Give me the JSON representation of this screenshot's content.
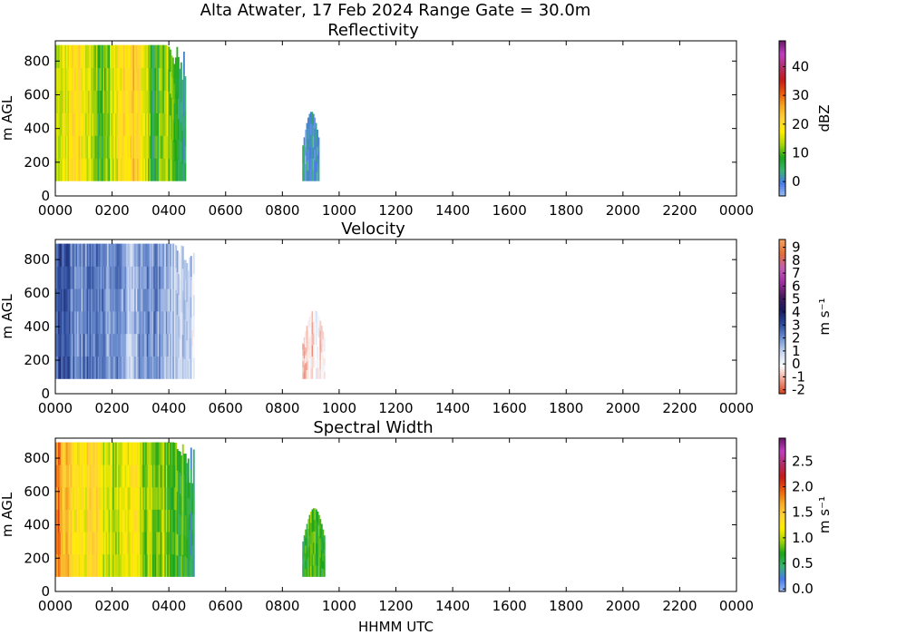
{
  "figure_title": "Alta Atwater, 17 Feb 2024 Range Gate = 30.0m",
  "chart_data": [
    {
      "type": "heatmap",
      "title": "Reflectivity",
      "xlabel": "",
      "ylabel": "m AGL",
      "colorbar_label": "dBZ",
      "x_ticks": [
        "0000",
        "0200",
        "0400",
        "0600",
        "0800",
        "1000",
        "1200",
        "1400",
        "1600",
        "1800",
        "2000",
        "2200",
        "0000"
      ],
      "y_ticks": [
        "0",
        "200",
        "400",
        "600",
        "800"
      ],
      "ylim": [
        0,
        920
      ],
      "xlim_hours": [
        0,
        24
      ],
      "colorbar_ticks": [
        "0",
        "10",
        "20",
        "30",
        "40"
      ],
      "colorbar_tick_values": [
        0,
        10,
        20,
        30,
        40
      ],
      "colorbar_range": [
        -5,
        49
      ],
      "colormap": [
        "#9bbdf5",
        "#4a7ae8",
        "#3cb371",
        "#1aa51a",
        "#a8d40a",
        "#ffee00",
        "#ffd23a",
        "#f5a623",
        "#e8590c",
        "#c41a1a",
        "#b0306b",
        "#c040c0",
        "#6a1a6a"
      ],
      "regions": [
        {
          "t_start": 0.0,
          "t_end": 4.6,
          "h_bottom": 90,
          "h_top": 895,
          "levels": [
            12,
            18,
            20,
            17,
            8,
            14,
            20,
            23,
            19,
            6,
            15,
            8,
            3
          ]
        },
        {
          "t_start": 8.7,
          "t_end": 9.3,
          "h_bottom": 90,
          "h_top": 500,
          "levels": [
            1,
            0,
            2,
            1
          ]
        }
      ]
    },
    {
      "type": "heatmap",
      "title": "Velocity",
      "xlabel": "",
      "ylabel": "m AGL",
      "colorbar_label": "m s⁻¹",
      "x_ticks": [
        "0000",
        "0200",
        "0400",
        "0600",
        "0800",
        "1000",
        "1200",
        "1400",
        "1600",
        "1800",
        "2000",
        "2200",
        "0000"
      ],
      "y_ticks": [
        "0",
        "200",
        "400",
        "600",
        "800"
      ],
      "ylim": [
        0,
        920
      ],
      "xlim_hours": [
        0,
        24
      ],
      "colorbar_ticks": [
        "-2",
        "-1",
        "0",
        "1",
        "2",
        "3",
        "4",
        "5",
        "6",
        "7",
        "8",
        "9"
      ],
      "colorbar_tick_values": [
        -2,
        -1,
        0,
        1,
        2,
        3,
        4,
        5,
        6,
        7,
        8,
        9
      ],
      "colorbar_range": [
        -2.3,
        9.6
      ],
      "colormap": [
        "#d6401a",
        "#f0a090",
        "#ffffff",
        "#c8d6f0",
        "#6e8fd0",
        "#2c4a9a",
        "#1a1a5c",
        "#4a1a5c",
        "#a030a0",
        "#c060b0",
        "#e0703a",
        "#f5a060"
      ],
      "regions": [
        {
          "t_start": 0.0,
          "t_end": 4.9,
          "h_bottom": 90,
          "h_top": 895,
          "levels": [
            3.2,
            2.6,
            2.0,
            2.8,
            1.6,
            2.2,
            1.4,
            2.4,
            1.8,
            1.2,
            0.9,
            0.6
          ]
        },
        {
          "t_start": 8.7,
          "t_end": 9.5,
          "h_bottom": 90,
          "h_top": 500,
          "levels": [
            -0.6,
            -0.3,
            -0.8
          ]
        }
      ]
    },
    {
      "type": "heatmap",
      "title": "Spectral Width",
      "xlabel": "HHMM UTC",
      "ylabel": "m AGL",
      "colorbar_label": "m s⁻¹",
      "x_ticks": [
        "0000",
        "0200",
        "0400",
        "0600",
        "0800",
        "1000",
        "1200",
        "1400",
        "1600",
        "1800",
        "2000",
        "2200",
        "0000"
      ],
      "y_ticks": [
        "0",
        "200",
        "400",
        "600",
        "800"
      ],
      "ylim": [
        0,
        920
      ],
      "xlim_hours": [
        0,
        24
      ],
      "colorbar_ticks": [
        "0.0",
        "0.5",
        "1.0",
        "1.5",
        "2.0",
        "2.5"
      ],
      "colorbar_tick_values": [
        0.0,
        0.5,
        1.0,
        1.5,
        2.0,
        2.5
      ],
      "colorbar_range": [
        -0.05,
        2.95
      ],
      "colormap": [
        "#9bbdf5",
        "#4a7ae8",
        "#3cb371",
        "#1aa51a",
        "#a8d40a",
        "#ffee00",
        "#ffd23a",
        "#f5a623",
        "#e8590c",
        "#c41a1a",
        "#b0306b",
        "#c040c0",
        "#6a1a6a"
      ],
      "regions": [
        {
          "t_start": 0.0,
          "t_end": 4.9,
          "h_bottom": 90,
          "h_top": 895,
          "levels": [
            1.9,
            1.5,
            1.2,
            1.4,
            1.1,
            1.0,
            1.3,
            0.9,
            1.0,
            0.8,
            0.7,
            0.4
          ]
        },
        {
          "t_start": 8.7,
          "t_end": 9.5,
          "h_bottom": 90,
          "h_top": 500,
          "levels": [
            0.6,
            0.8,
            0.5
          ]
        }
      ]
    }
  ]
}
